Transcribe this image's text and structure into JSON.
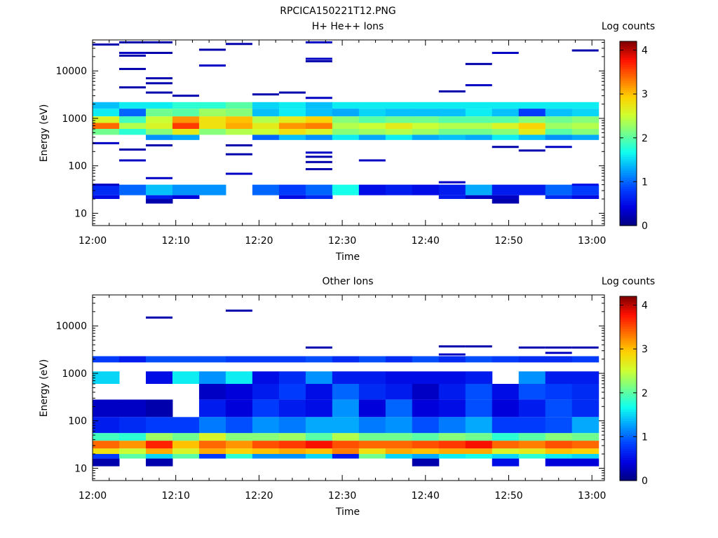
{
  "figure": {
    "title": "RPCICA150221T12.PNG"
  },
  "colormap": [
    "#00007f",
    "#0000e0",
    "#0040ff",
    "#00a0ff",
    "#10ffef",
    "#70ff8f",
    "#cfff30",
    "#ffd000",
    "#ff7000",
    "#ff1000",
    "#7f0000"
  ],
  "chart_data": [
    {
      "type": "heatmap",
      "title": "H+ He++ Ions",
      "xlabel": "Time",
      "ylabel": "Energy (eV)",
      "x_ticks": [
        "12:00",
        "12:10",
        "12:20",
        "12:30",
        "12:40",
        "12:50",
        "13:00"
      ],
      "xlim_minutes": [
        0,
        61.5
      ],
      "y_ticks": [
        "10",
        "100",
        "1000",
        "10000"
      ],
      "y_scale": "log",
      "ylim": [
        5.5,
        45000
      ],
      "colorbar": {
        "label": "Log counts",
        "ticks": [
          "0",
          "1",
          "2",
          "3",
          "4"
        ],
        "range": [
          0,
          4.2
        ]
      },
      "time_bins_minutes": [
        0,
        3.2,
        6.4,
        9.6,
        12.8,
        16.0,
        19.2,
        22.4,
        25.6,
        28.8,
        32.0,
        35.2,
        38.4,
        41.6,
        44.8,
        48.0,
        51.2,
        54.4,
        57.6,
        60.8
      ],
      "bands": [
        {
          "elow": 1600,
          "ehigh": 2200,
          "levels": [
            1.4,
            1.6,
            1.6,
            1.8,
            1.8,
            2.0,
            1.5,
            1.6,
            1.4,
            1.6,
            1.6,
            1.6,
            1.6,
            1.6,
            1.6,
            1.6,
            1.6,
            1.6,
            1.6
          ]
        },
        {
          "elow": 1100,
          "ehigh": 1600,
          "levels": [
            1.6,
            1.0,
            2.1,
            2.0,
            2.3,
            2.2,
            1.4,
            1.6,
            1.4,
            1.3,
            1.5,
            1.4,
            1.4,
            1.4,
            1.6,
            1.4,
            0.8,
            1.4,
            1.5
          ]
        },
        {
          "elow": 800,
          "ehigh": 1100,
          "levels": [
            2.6,
            1.9,
            2.5,
            3.2,
            2.8,
            3.0,
            2.4,
            2.7,
            2.9,
            2.2,
            2.0,
            2.1,
            2.1,
            2.0,
            2.0,
            2.0,
            2.2,
            2.1,
            2.2
          ]
        },
        {
          "elow": 600,
          "ehigh": 800,
          "levels": [
            3.4,
            2.4,
            2.6,
            3.6,
            2.8,
            3.1,
            2.7,
            3.2,
            3.3,
            2.4,
            2.5,
            2.7,
            2.5,
            2.4,
            2.4,
            2.6,
            2.9,
            2.3,
            2.4
          ]
        },
        {
          "elow": 450,
          "ehigh": 600,
          "levels": [
            2.1,
            1.8,
            2.2,
            2.7,
            2.2,
            2.4,
            2.5,
            2.8,
            2.6,
            2.2,
            2.3,
            2.4,
            2.3,
            2.1,
            2.1,
            2.2,
            2.7,
            2.0,
            2.2
          ]
        },
        {
          "elow": 350,
          "ehigh": 450,
          "levels": [
            0,
            0,
            1.2,
            1.3,
            0,
            0,
            1.0,
            1.4,
            1.2,
            1.6,
            1.3,
            1.6,
            1.3,
            1.4,
            1.3,
            1.6,
            1.4,
            1.2,
            1.3
          ]
        },
        {
          "elow": 24,
          "ehigh": 40,
          "levels": [
            0.7,
            1.0,
            1.4,
            1.2,
            1.2,
            0,
            1.0,
            0.8,
            1.0,
            1.7,
            0.5,
            0.6,
            0.5,
            0.6,
            1.3,
            0.6,
            0.6,
            1.0,
            0.8
          ]
        },
        {
          "elow": 20,
          "ehigh": 24,
          "levels": [
            0.5,
            0,
            0.6,
            0.4,
            0,
            0,
            0,
            0.5,
            0.7,
            0,
            0,
            0,
            0,
            0.6,
            0.3,
            0.3,
            0,
            0.7,
            0.5
          ]
        },
        {
          "elow": 16,
          "ehigh": 20,
          "levels": [
            0,
            0,
            0.2,
            0,
            0,
            0,
            0,
            0,
            0,
            0,
            0,
            0,
            0,
            0,
            0,
            0.2,
            0,
            0,
            0
          ]
        }
      ],
      "lines": [
        [
          0,
          36000,
          0.2
        ],
        [
          3.2,
          40000,
          0.2
        ],
        [
          6.4,
          40000,
          0.2
        ],
        [
          25.6,
          40000,
          0.3
        ],
        [
          16.0,
          37000,
          0.2
        ],
        [
          3.2,
          24000,
          0.3
        ],
        [
          3.2,
          21000,
          0.2
        ],
        [
          6.4,
          24000,
          0.2
        ],
        [
          48.0,
          24000,
          0.3
        ],
        [
          57.6,
          27000,
          0.2
        ],
        [
          12.8,
          28000,
          0.2
        ],
        [
          12.8,
          13000,
          0.3
        ],
        [
          25.6,
          18000,
          0.3
        ],
        [
          25.6,
          16000,
          0.2
        ],
        [
          3.2,
          11000,
          0.2
        ],
        [
          6.4,
          7000,
          0.2
        ],
        [
          6.4,
          5500,
          0.2
        ],
        [
          44.8,
          14000,
          0.2
        ],
        [
          44.8,
          5000,
          0.3
        ],
        [
          3.2,
          4500,
          0.2
        ],
        [
          6.4,
          3500,
          0.2
        ],
        [
          9.6,
          3000,
          0.2
        ],
        [
          19.2,
          3200,
          0.2
        ],
        [
          22.4,
          3500,
          0.2
        ],
        [
          25.6,
          2700,
          0.3
        ],
        [
          41.6,
          3700,
          0.2
        ],
        [
          0,
          300,
          0.3
        ],
        [
          3.2,
          220,
          0.2
        ],
        [
          3.2,
          130,
          0.3
        ],
        [
          6.4,
          270,
          0.2
        ],
        [
          16.0,
          270,
          0.2
        ],
        [
          16.0,
          175,
          0.2
        ],
        [
          16.0,
          68,
          0.3
        ],
        [
          25.6,
          190,
          0.3
        ],
        [
          25.6,
          155,
          0.2
        ],
        [
          25.6,
          120,
          0.2
        ],
        [
          25.6,
          85,
          0.2
        ],
        [
          32.0,
          130,
          0.3
        ],
        [
          6.4,
          55,
          0.3
        ],
        [
          0,
          40,
          0.3
        ],
        [
          41.6,
          45,
          0.3
        ],
        [
          54.4,
          250,
          0.3
        ],
        [
          51.2,
          210,
          0.2
        ],
        [
          48.0,
          250,
          0.2
        ],
        [
          57.6,
          40,
          0.5
        ]
      ]
    },
    {
      "type": "heatmap",
      "title": "Other Ions",
      "xlabel": "Time",
      "ylabel": "Energy (eV)",
      "x_ticks": [
        "12:00",
        "12:10",
        "12:20",
        "12:30",
        "12:40",
        "12:50",
        "13:00"
      ],
      "xlim_minutes": [
        0,
        61.5
      ],
      "y_ticks": [
        "10",
        "100",
        "1000",
        "10000"
      ],
      "y_scale": "log",
      "ylim": [
        5.5,
        45000
      ],
      "colorbar": {
        "label": "Log counts",
        "ticks": [
          "0",
          "1",
          "2",
          "3",
          "4"
        ],
        "range": [
          0,
          4.2
        ]
      },
      "time_bins_minutes": [
        0,
        3.2,
        6.4,
        9.6,
        12.8,
        16.0,
        19.2,
        22.4,
        25.6,
        28.8,
        32.0,
        35.2,
        38.4,
        41.6,
        44.8,
        48.0,
        51.2,
        54.4,
        57.6,
        60.8
      ],
      "bands": [
        {
          "elow": 1700,
          "ehigh": 2300,
          "levels": [
            0.8,
            0.6,
            0.9,
            0.9,
            0.9,
            0.8,
            0.8,
            0.8,
            0.9,
            0.7,
            0.9,
            0.7,
            0.9,
            0.7,
            0.9,
            0.8,
            0.7,
            0.7,
            0.8
          ]
        },
        {
          "elow": 600,
          "ehigh": 1100,
          "levels": [
            1.5,
            0,
            0.5,
            1.6,
            1.2,
            1.6,
            0.5,
            0.7,
            1.2,
            0.6,
            0.6,
            0.5,
            0.5,
            0.5,
            0.6,
            0,
            1.2,
            0.6,
            0.6
          ]
        },
        {
          "elow": 280,
          "ehigh": 600,
          "levels": [
            0,
            0,
            0,
            0,
            0.3,
            0.4,
            0.6,
            0.8,
            0.5,
            1.0,
            0.7,
            0.6,
            0.3,
            0.6,
            0.9,
            0.5,
            0.9,
            0.8,
            0.7
          ]
        },
        {
          "elow": 120,
          "ehigh": 280,
          "levels": [
            0.3,
            0.3,
            0.2,
            0,
            0.6,
            0.4,
            0.8,
            0.6,
            0.5,
            1.2,
            0.4,
            1.0,
            0.4,
            0.5,
            0.9,
            0.4,
            0.6,
            0.9,
            0.7
          ]
        },
        {
          "elow": 55,
          "ehigh": 120,
          "levels": [
            0.6,
            0.7,
            0.8,
            0.8,
            1.1,
            0.9,
            1.2,
            1.1,
            1.3,
            1.3,
            1.1,
            1.2,
            0.9,
            1.1,
            1.3,
            0.8,
            0.8,
            0.9,
            1.3
          ]
        },
        {
          "elow": 38,
          "ehigh": 55,
          "levels": [
            1.9,
            1.8,
            2.3,
            2.1,
            2.6,
            2.2,
            2.2,
            2.3,
            2.0,
            2.4,
            2.1,
            2.1,
            2.0,
            2.2,
            2.1,
            1.8,
            2.0,
            2.2,
            2.1
          ]
        },
        {
          "elow": 26,
          "ehigh": 38,
          "levels": [
            3.4,
            3.2,
            3.7,
            3.0,
            3.4,
            3.2,
            3.5,
            3.6,
            3.8,
            3.5,
            3.4,
            3.4,
            3.5,
            3.6,
            3.8,
            3.4,
            3.3,
            3.5,
            3.4
          ]
        },
        {
          "elow": 20,
          "ehigh": 26,
          "levels": [
            2.8,
            2.5,
            3.1,
            2.6,
            3.1,
            2.9,
            3.0,
            3.1,
            3.0,
            3.3,
            2.8,
            3.1,
            3.0,
            3.1,
            3.1,
            2.6,
            2.7,
            3.0,
            2.9
          ]
        },
        {
          "elow": 16,
          "ehigh": 20,
          "levels": [
            0.8,
            2.0,
            1.5,
            2.0,
            0.8,
            1.8,
            1.2,
            1.2,
            1.5,
            0.6,
            2.1,
            1.5,
            1.3,
            1.6,
            1.7,
            1.5,
            1.8,
            1.6,
            1.5
          ]
        },
        {
          "elow": 11,
          "ehigh": 16,
          "levels": [
            0.2,
            0,
            0.2,
            0,
            0,
            0,
            0,
            0,
            0,
            0,
            0,
            0,
            0.2,
            0,
            0,
            0.5,
            0,
            0.4,
            0.4
          ]
        }
      ],
      "lines": [
        [
          6.4,
          15000,
          0.2
        ],
        [
          16.0,
          21000,
          0.2
        ],
        [
          25.6,
          3500,
          0.2
        ],
        [
          41.6,
          3700,
          0.2
        ],
        [
          44.8,
          3700,
          0.2
        ],
        [
          51.2,
          3500,
          0.2
        ],
        [
          54.4,
          3500,
          0.2
        ],
        [
          57.6,
          3500,
          0.2
        ],
        [
          54.4,
          2700,
          0.3
        ],
        [
          41.6,
          2500,
          0.3
        ]
      ]
    }
  ]
}
